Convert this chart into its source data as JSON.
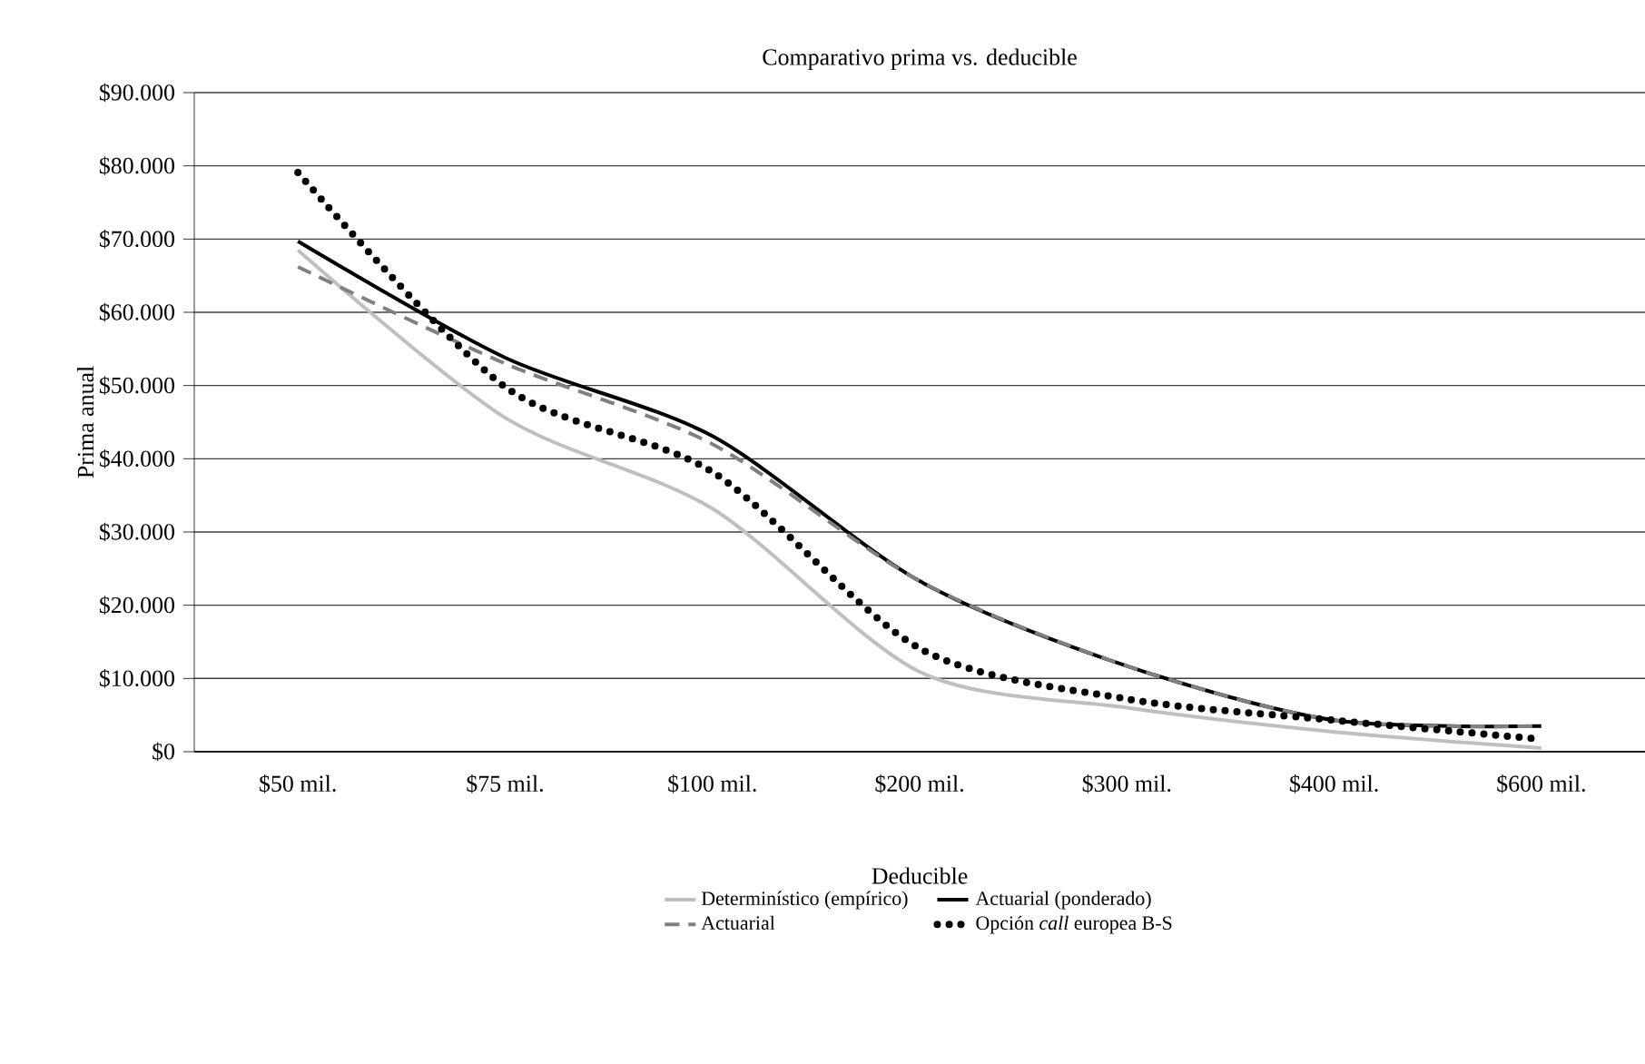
{
  "chart_data": {
    "type": "line",
    "title": "Comparativo prima vs. deducible",
    "xlabel": "Deducible",
    "ylabel": "Prima anual",
    "categories": [
      "$50 mil.",
      "$75 mil.",
      "$100 mil.",
      "$200 mil.",
      "$300 mil.",
      "$400 mil.",
      "$600 mil."
    ],
    "series": [
      {
        "name": "Determinístico (empírico)",
        "color": "#bfbfbf",
        "line_style": "solid",
        "values": [
          68500,
          45600,
          33200,
          10900,
          6000,
          2700,
          500
        ]
      },
      {
        "name": "Actuarial (ponderado)",
        "color": "#000000",
        "line_style": "solid",
        "values": [
          69700,
          53800,
          43100,
          23300,
          11700,
          4300,
          3500
        ]
      },
      {
        "name": "Actuarial",
        "color": "#808080",
        "line_style": "dashed",
        "values": [
          66200,
          53000,
          42000,
          23300,
          11700,
          4300,
          3500
        ]
      },
      {
        "name": "Opción *call* europea B-S",
        "color": "#000000",
        "line_style": "dotted",
        "values": [
          79100,
          49800,
          38200,
          14100,
          7200,
          4300,
          1700
        ]
      }
    ],
    "ylim": [
      0,
      90000
    ],
    "yticks": [
      {
        "value": 0,
        "label": "$0"
      },
      {
        "value": 10000,
        "label": "$10.000"
      },
      {
        "value": 20000,
        "label": "$20.000"
      },
      {
        "value": 30000,
        "label": "$30.000"
      },
      {
        "value": 40000,
        "label": "$40.000"
      },
      {
        "value": 50000,
        "label": "$50.000"
      },
      {
        "value": 60000,
        "label": "$60.000"
      },
      {
        "value": 70000,
        "label": "$70.000"
      },
      {
        "value": 80000,
        "label": "$80.000"
      },
      {
        "value": 90000,
        "label": "$90.000"
      }
    ],
    "grid": "y",
    "legend": "bottom"
  }
}
